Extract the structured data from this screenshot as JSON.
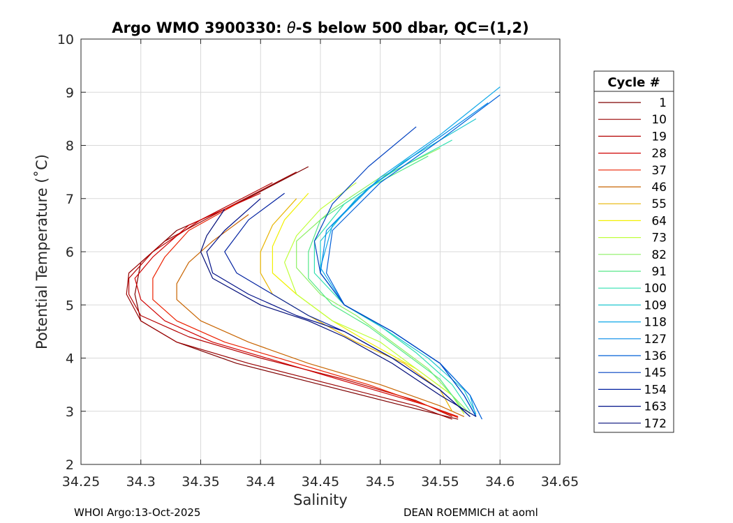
{
  "chart_data": {
    "type": "line",
    "title": "Argo WMO 3900330: θ-S below 500 dbar,  QC=(1,2)",
    "title_prefix": "Argo WMO 3900330: ",
    "title_theta": "θ",
    "title_suffix": "-S below 500 dbar,  QC=(1,2)",
    "xlabel": "Salinity",
    "ylabel": "Potential Temperature (˚C)",
    "xlim": [
      34.25,
      34.65
    ],
    "ylim": [
      2,
      10
    ],
    "xticks": [
      "34.25",
      "34.3",
      "34.35",
      "34.4",
      "34.45",
      "34.5",
      "34.55",
      "34.6",
      "34.65"
    ],
    "yticks": [
      "2",
      "3",
      "4",
      "5",
      "6",
      "7",
      "8",
      "9",
      "10"
    ],
    "grid": true,
    "legend": {
      "title": "Cycle #",
      "position": "right",
      "entries": [
        "1",
        "10",
        "19",
        "28",
        "37",
        "46",
        "55",
        "64",
        "73",
        "82",
        "91",
        "100",
        "109",
        "118",
        "127",
        "136",
        "145",
        "154",
        "163",
        "172"
      ],
      "colors": [
        "#7f0000",
        "#a30000",
        "#c80000",
        "#ee0000",
        "#ff2a00",
        "#ff5500",
        "#ff8000",
        "#ffaa00",
        "#ffd500",
        "#ffff00",
        "#d5ff2a",
        "#aaff55",
        "#80ff80",
        "#55ffaa",
        "#2affd5",
        "#00ffff",
        "#00d5ff",
        "#00aaff",
        "#0080ff",
        "#0055ff"
      ],
      "line_colors": [
        "#7f0000",
        "#980000",
        "#b40000",
        "#d00000",
        "#ec2000",
        "#c86400",
        "#e8b400",
        "#f2f000",
        "#c0ff3c",
        "#8cf064",
        "#56e888",
        "#30e0b0",
        "#20c8d0",
        "#10a8e8",
        "#0088e8",
        "#0060d8",
        "#0040c0",
        "#0020a0",
        "#001088",
        "#000c78"
      ]
    },
    "series": [
      {
        "name": "1",
        "color": "#7f0000",
        "salinity": [
          34.44,
          34.38,
          34.33,
          34.3,
          34.295,
          34.3,
          34.33,
          34.38,
          34.45,
          34.52,
          34.565
        ],
        "theta": [
          7.6,
          6.9,
          6.4,
          5.8,
          5.2,
          4.7,
          4.3,
          3.9,
          3.5,
          3.1,
          2.85
        ]
      },
      {
        "name": "10",
        "color": "#980000",
        "salinity": [
          34.43,
          34.37,
          34.32,
          34.29,
          34.288,
          34.3,
          34.33,
          34.39,
          34.46,
          34.53,
          34.56
        ],
        "theta": [
          7.5,
          6.8,
          6.2,
          5.6,
          5.2,
          4.7,
          4.3,
          3.9,
          3.5,
          3.1,
          2.85
        ]
      },
      {
        "name": "19",
        "color": "#b40000",
        "salinity": [
          34.41,
          34.35,
          34.31,
          34.29,
          34.29,
          34.3,
          34.34,
          34.4,
          34.47,
          34.53,
          34.56
        ],
        "theta": [
          7.3,
          6.6,
          6.0,
          5.5,
          5.2,
          4.8,
          4.4,
          4.0,
          3.6,
          3.2,
          2.9
        ]
      },
      {
        "name": "28",
        "color": "#d00000",
        "salinity": [
          34.4,
          34.34,
          34.31,
          34.295,
          34.3,
          34.32,
          34.36,
          34.42,
          34.48,
          34.54,
          34.565
        ],
        "theta": [
          7.1,
          6.5,
          5.9,
          5.5,
          5.1,
          4.7,
          4.3,
          3.9,
          3.5,
          3.1,
          2.9
        ]
      },
      {
        "name": "37",
        "color": "#ec2000",
        "salinity": [
          34.38,
          34.34,
          34.32,
          34.31,
          34.31,
          34.33,
          34.37,
          34.43,
          34.49,
          34.54,
          34.565
        ],
        "theta": [
          6.9,
          6.4,
          5.9,
          5.5,
          5.1,
          4.7,
          4.3,
          3.9,
          3.5,
          3.1,
          2.88
        ]
      },
      {
        "name": "46",
        "color": "#c86400",
        "salinity": [
          34.39,
          34.36,
          34.34,
          34.33,
          34.33,
          34.35,
          34.39,
          34.44,
          34.5,
          34.55,
          34.57
        ],
        "theta": [
          6.7,
          6.2,
          5.8,
          5.4,
          5.1,
          4.7,
          4.3,
          3.9,
          3.5,
          3.1,
          2.9
        ]
      },
      {
        "name": "55",
        "color": "#e8b400",
        "salinity": [
          34.43,
          34.41,
          34.4,
          34.4,
          34.41,
          34.44,
          34.48,
          34.52,
          34.55,
          34.56
        ],
        "theta": [
          7.0,
          6.5,
          6.0,
          5.6,
          5.2,
          4.8,
          4.3,
          3.9,
          3.4,
          3.0
        ]
      },
      {
        "name": "64",
        "color": "#f2f000",
        "salinity": [
          34.44,
          34.42,
          34.41,
          34.41,
          34.43,
          34.46,
          34.49,
          34.53,
          34.56,
          34.57
        ],
        "theta": [
          7.1,
          6.6,
          6.1,
          5.6,
          5.2,
          4.7,
          4.3,
          3.8,
          3.3,
          2.95
        ]
      },
      {
        "name": "73",
        "color": "#c0ff3c",
        "salinity": [
          34.48,
          34.45,
          34.43,
          34.42,
          34.43,
          34.46,
          34.5,
          34.53,
          34.56,
          34.57
        ],
        "theta": [
          7.3,
          6.8,
          6.3,
          5.8,
          5.2,
          4.7,
          4.3,
          3.8,
          3.3,
          2.95
        ]
      },
      {
        "name": "82",
        "color": "#8cf064",
        "salinity": [
          34.55,
          34.5,
          34.46,
          34.43,
          34.43,
          34.45,
          34.48,
          34.51,
          34.54,
          34.56,
          34.575
        ],
        "theta": [
          7.95,
          7.4,
          6.8,
          6.2,
          5.7,
          5.2,
          4.8,
          4.3,
          3.8,
          3.3,
          2.95
        ]
      },
      {
        "name": "91",
        "color": "#56e888",
        "salinity": [
          34.54,
          34.49,
          34.45,
          34.44,
          34.44,
          34.46,
          34.49,
          34.52,
          34.55,
          34.57
        ],
        "theta": [
          7.8,
          7.2,
          6.6,
          6.0,
          5.5,
          5.0,
          4.6,
          4.1,
          3.6,
          3.0
        ]
      },
      {
        "name": "100",
        "color": "#30e0b0",
        "salinity": [
          34.56,
          34.51,
          34.47,
          34.445,
          34.445,
          34.47,
          34.5,
          34.53,
          34.56,
          34.575
        ],
        "theta": [
          8.1,
          7.5,
          6.9,
          6.2,
          5.6,
          5.0,
          4.6,
          4.1,
          3.5,
          3.0
        ]
      },
      {
        "name": "109",
        "color": "#20c8d0",
        "salinity": [
          34.58,
          34.52,
          34.48,
          34.45,
          34.45,
          34.47,
          34.5,
          34.54,
          34.57,
          34.58
        ],
        "theta": [
          8.5,
          7.7,
          7.0,
          6.2,
          5.6,
          5.0,
          4.6,
          4.0,
          3.4,
          2.95
        ]
      },
      {
        "name": "118",
        "color": "#10a8e8",
        "salinity": [
          34.6,
          34.55,
          34.5,
          34.46,
          34.45,
          34.47,
          34.51,
          34.55,
          34.575,
          34.58
        ],
        "theta": [
          9.1,
          8.2,
          7.4,
          6.5,
          5.7,
          5.0,
          4.5,
          3.9,
          3.3,
          2.9
        ]
      },
      {
        "name": "127",
        "color": "#0088e8",
        "salinity": [
          34.59,
          34.54,
          34.49,
          34.455,
          34.45,
          34.47,
          34.51,
          34.55,
          34.57,
          34.58
        ],
        "theta": [
          8.8,
          8.0,
          7.2,
          6.4,
          5.6,
          5.0,
          4.5,
          3.9,
          3.3,
          2.9
        ]
      },
      {
        "name": "136",
        "color": "#0060d8",
        "salinity": [
          34.6,
          34.55,
          34.5,
          34.46,
          34.455,
          34.47,
          34.51,
          34.55,
          34.575,
          34.585
        ],
        "theta": [
          8.95,
          8.1,
          7.3,
          6.4,
          5.6,
          5.0,
          4.5,
          3.9,
          3.3,
          2.85
        ]
      },
      {
        "name": "145",
        "color": "#0040c0",
        "salinity": [
          34.53,
          34.49,
          34.46,
          34.445,
          34.45,
          34.47,
          34.51,
          34.55,
          34.57,
          34.58
        ],
        "theta": [
          8.35,
          7.6,
          6.9,
          6.2,
          5.6,
          5.0,
          4.5,
          3.9,
          3.3,
          2.9
        ]
      },
      {
        "name": "154",
        "color": "#0020a0",
        "salinity": [
          34.42,
          34.39,
          34.37,
          34.38,
          34.41,
          34.44,
          34.47,
          34.51,
          34.55,
          34.575
        ],
        "theta": [
          7.1,
          6.6,
          6.0,
          5.6,
          5.2,
          4.8,
          4.5,
          4.0,
          3.4,
          2.9
        ]
      },
      {
        "name": "163",
        "color": "#001088",
        "salinity": [
          34.4,
          34.37,
          34.355,
          34.36,
          34.39,
          34.43,
          34.47,
          34.51,
          34.55,
          34.575
        ],
        "theta": [
          7.0,
          6.4,
          6.0,
          5.6,
          5.2,
          4.8,
          4.5,
          4.0,
          3.4,
          2.9
        ]
      },
      {
        "name": "172",
        "color": "#000c78",
        "salinity": [
          34.37,
          34.355,
          34.35,
          34.36,
          34.4,
          34.44,
          34.47,
          34.51,
          34.55,
          34.58
        ],
        "theta": [
          6.8,
          6.3,
          6.0,
          5.5,
          5.0,
          4.7,
          4.4,
          3.9,
          3.3,
          2.9
        ]
      }
    ]
  },
  "footer": {
    "left": "WHOI Argo:13-Oct-2025",
    "right": "DEAN ROEMMICH at aoml"
  }
}
